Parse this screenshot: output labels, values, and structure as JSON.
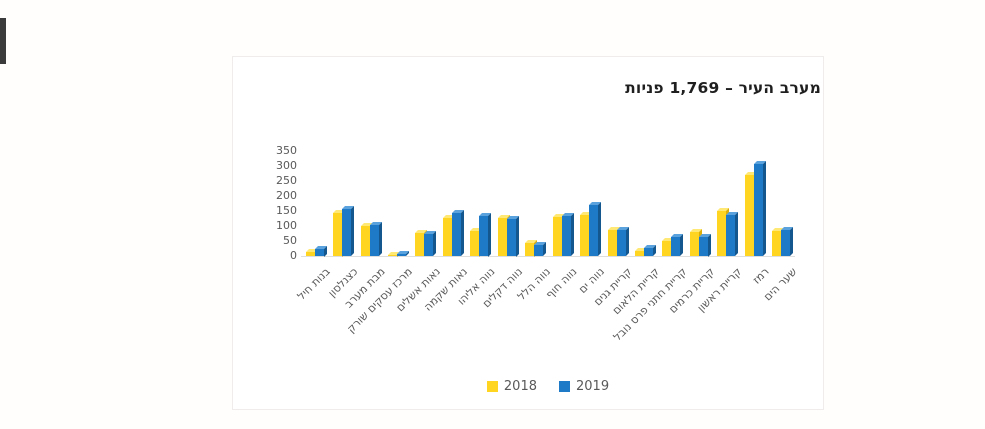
{
  "chart_data": {
    "type": "bar",
    "title": "מערב העיר – 1,769 פניות",
    "categories": [
      "בנות חיל",
      "כצנלסון",
      "מבת מערב",
      "מרכז עסקים שורק",
      "נאות אשלים",
      "נאות שקמה",
      "נווה אליהו",
      "נווה דקלים",
      "נווה הלל",
      "נווה חוף",
      "נווה ים",
      "קריית גנים",
      "קריית הלאום",
      "קריית חתני פרס נובל",
      "קריית כרמים",
      "קריית ראשון",
      "רמז",
      "שער הים"
    ],
    "series": [
      {
        "name": "2018",
        "color": "#ffd521",
        "values": [
          12,
          145,
          100,
          5,
          78,
          128,
          85,
          126,
          45,
          131,
          136,
          88,
          18,
          50,
          80,
          150,
          270,
          84
        ]
      },
      {
        "name": "2019",
        "color": "#1e7ac6",
        "values": [
          25,
          157,
          104,
          7,
          73,
          143,
          135,
          125,
          38,
          132,
          170,
          86,
          28,
          62,
          65,
          138,
          308,
          87
        ]
      }
    ],
    "ylim": [
      0,
      350
    ],
    "yticks": [
      0,
      50,
      100,
      150,
      200,
      250,
      300,
      350
    ],
    "grid": false,
    "legend_position": "bottom",
    "xlabel": "",
    "ylabel": ""
  }
}
